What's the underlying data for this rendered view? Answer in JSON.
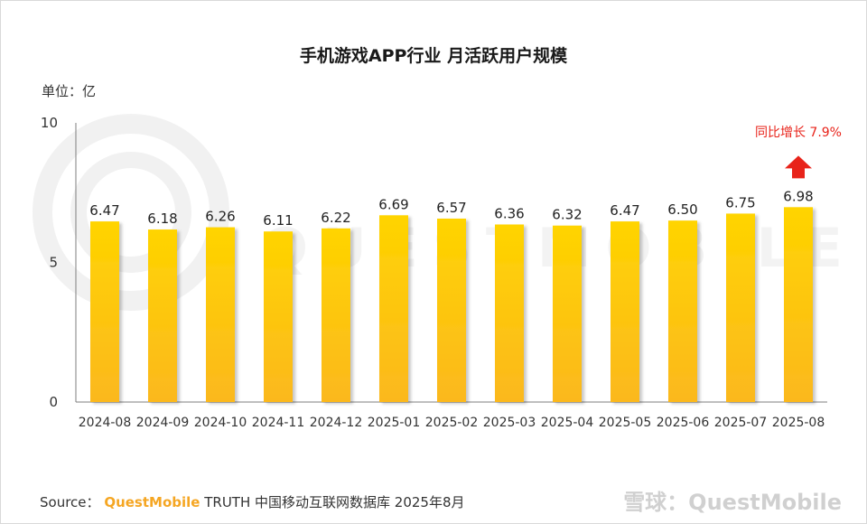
{
  "chart_data": {
    "type": "bar",
    "title": "手机游戏APP行业 月活跃用户规模",
    "unit_label": "单位：亿",
    "categories": [
      "2024-08",
      "2024-09",
      "2024-10",
      "2024-11",
      "2024-12",
      "2025-01",
      "2025-02",
      "2025-03",
      "2025-04",
      "2025-05",
      "2025-06",
      "2025-07",
      "2025-08"
    ],
    "values": [
      6.47,
      6.18,
      6.26,
      6.11,
      6.22,
      6.69,
      6.57,
      6.36,
      6.32,
      6.47,
      6.5,
      6.75,
      6.98
    ],
    "value_labels": [
      "6.47",
      "6.18",
      "6.26",
      "6.11",
      "6.22",
      "6.69",
      "6.57",
      "6.36",
      "6.32",
      "6.47",
      "6.50",
      "6.75",
      "6.98"
    ],
    "ylim": [
      0,
      10
    ],
    "yticks": [
      0,
      5,
      10
    ],
    "xlabel": "",
    "ylabel": "亿",
    "bar_color_top": "#FFD400",
    "bar_color_bottom": "#FBB81E",
    "annotation": {
      "text_prefix": "同比增长",
      "text_value": "7.9%",
      "color": "#e8231a",
      "target_category": "2025-08"
    },
    "source": {
      "label": "Source：",
      "brand": "QuestMobile",
      "rest": " TRUTH 中国移动互联网数据库 2025年8月"
    },
    "watermark": "QUESTMOBILE",
    "xueqiu_watermark": "雪球：QuestMobile"
  }
}
